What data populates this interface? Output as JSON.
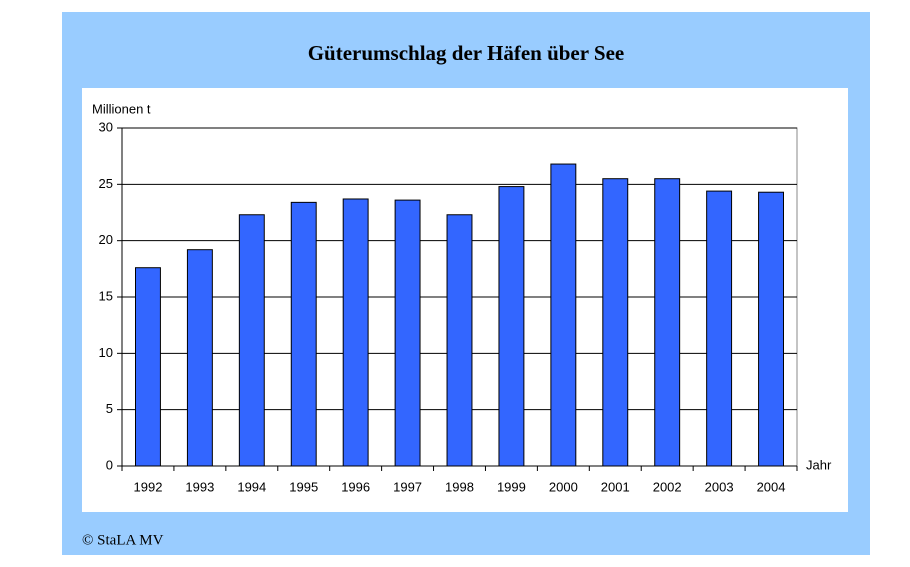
{
  "chart_data": {
    "type": "bar",
    "title": "Güterumschlag der Häfen über See",
    "y_label": "Millionen t",
    "x_label": "Jahr",
    "source": "© StaLA MV",
    "categories": [
      "1992",
      "1993",
      "1994",
      "1995",
      "1996",
      "1997",
      "1998",
      "1999",
      "2000",
      "2001",
      "2002",
      "2003",
      "2004"
    ],
    "values": [
      17.6,
      19.2,
      22.3,
      23.4,
      23.7,
      23.6,
      22.3,
      24.8,
      26.8,
      25.5,
      25.5,
      24.4,
      24.3
    ],
    "color": "#3366ff",
    "ylim": [
      0,
      30
    ],
    "yticks": [
      0,
      5,
      10,
      15,
      20,
      25,
      30
    ],
    "grid": true
  }
}
